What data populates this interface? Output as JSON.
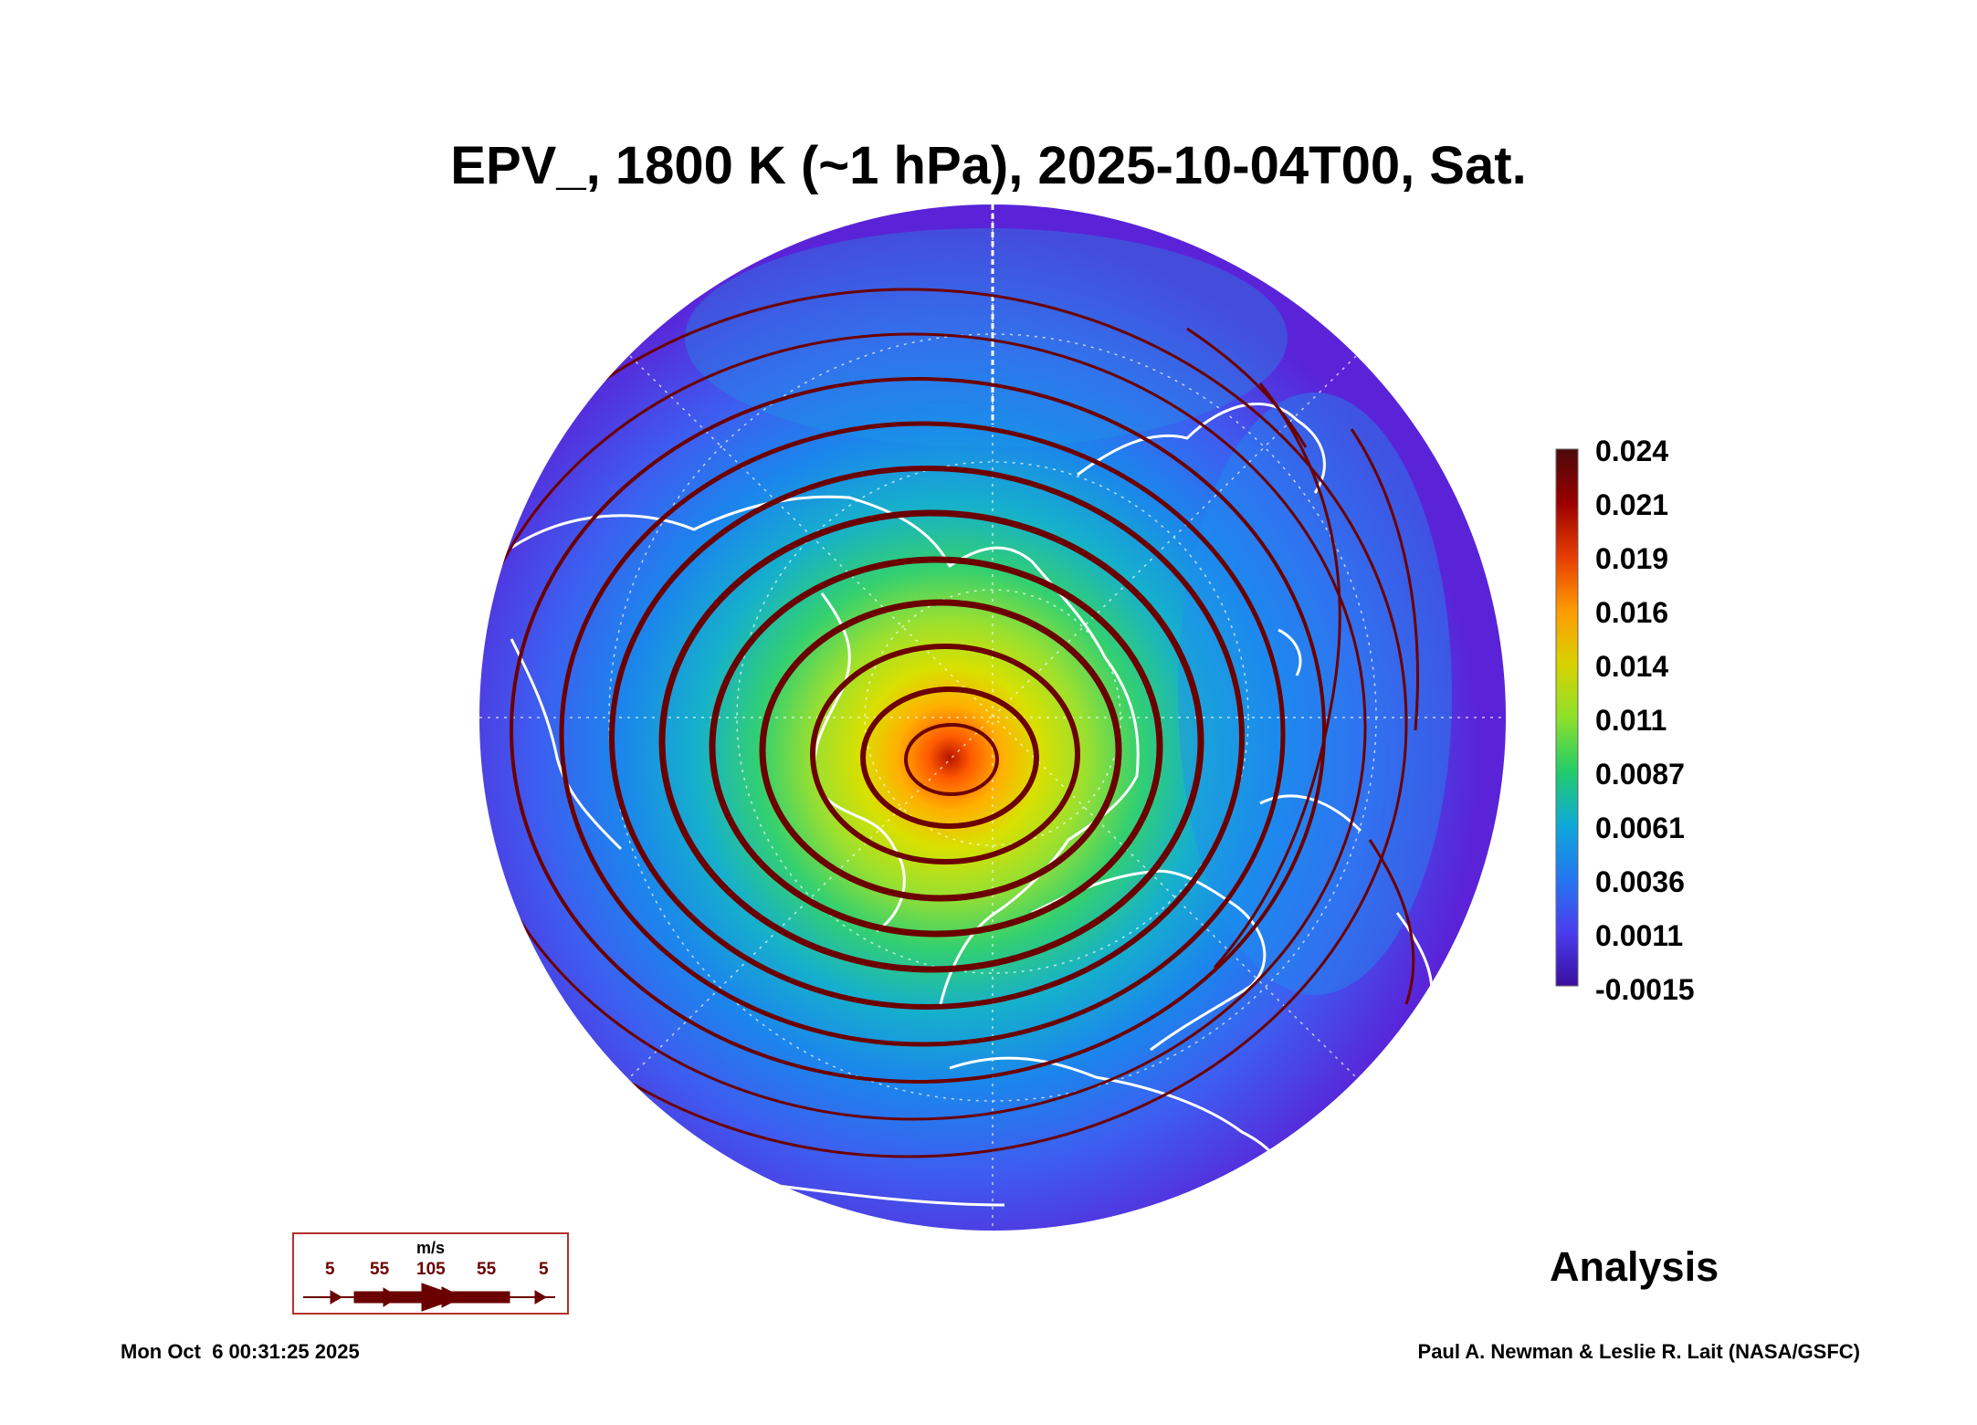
{
  "title": "EPV_, 1800 K (~1 hPa), 2025-10-04T00, Sat.",
  "colorbar": {
    "ticks": [
      "0.024",
      "0.021",
      "0.019",
      "0.016",
      "0.014",
      "0.011",
      "0.0087",
      "0.0061",
      "0.0036",
      "0.0011",
      "-0.0015"
    ],
    "colors": [
      "#4b0a0a",
      "#9b0000",
      "#e63c00",
      "#ff9a00",
      "#d8d200",
      "#8ee02a",
      "#22cc6a",
      "#0fa9d8",
      "#2377f0",
      "#4b3df0",
      "#3a0ea0"
    ]
  },
  "vector_legend": {
    "unit": "m/s",
    "speeds": [
      "5",
      "55",
      "105",
      "55",
      "5"
    ],
    "arrow_color": "#6b0000"
  },
  "label": "Analysis",
  "timestamp": "Mon Oct  6 00:31:25 2025",
  "credit": "Paul A. Newman & Leslie R. Lait (NASA/GSFC)"
}
